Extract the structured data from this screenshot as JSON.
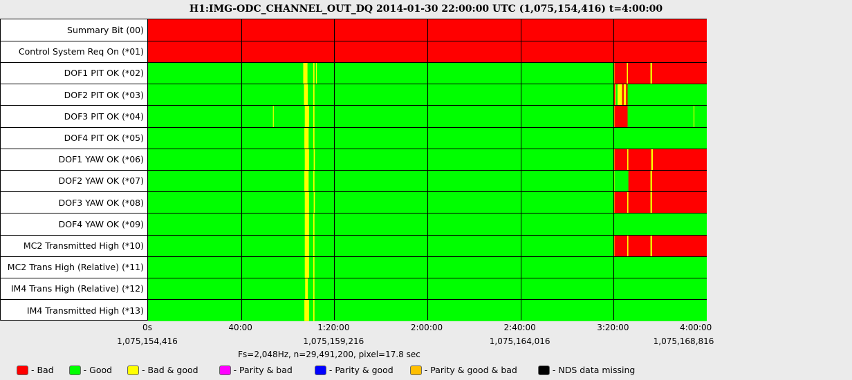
{
  "title": "H1:IMG-ODC_CHANNEL_OUT_DQ 2014-01-30 22:00:00 UTC (1,075,154,416) t=4:00:00",
  "subtitle": "Fs=2,048Hz, n=29,491,200, pixel=17.8 sec",
  "colors": {
    "bad": "#ff0000",
    "good": "#00ff00",
    "badgood": "#ffff00",
    "paritybad": "#ff00ff",
    "paritygood": "#0000ff",
    "paritygoodbad": "#ffbf00",
    "missing": "#000000"
  },
  "legend": [
    {
      "key": "bad",
      "label": "- Bad"
    },
    {
      "key": "good",
      "label": "- Good"
    },
    {
      "key": "badgood",
      "label": "- Bad & good"
    },
    {
      "key": "paritybad",
      "label": "- Parity & bad"
    },
    {
      "key": "paritygood",
      "label": "- Parity & good"
    },
    {
      "key": "paritygoodbad",
      "label": "- Parity & good & bad"
    },
    {
      "key": "missing",
      "label": "- NDS data missing"
    }
  ],
  "chart_data": {
    "type": "heatmap",
    "x_range_seconds": [
      0,
      14400
    ],
    "x_ticks": [
      {
        "t": 0,
        "label": "0s",
        "gps": "1,075,154,416"
      },
      {
        "t": 2400,
        "label": "40:00",
        "gps": ""
      },
      {
        "t": 4800,
        "label": "1:20:00",
        "gps": "1,075,159,216"
      },
      {
        "t": 7200,
        "label": "2:00:00",
        "gps": ""
      },
      {
        "t": 9600,
        "label": "2:40:00",
        "gps": "1,075,164,016"
      },
      {
        "t": 12000,
        "label": "3:20:00",
        "gps": ""
      },
      {
        "t": 14400,
        "label": "4:00:00",
        "gps": "1,075,168,816"
      }
    ],
    "rows": [
      {
        "label": "Summary Bit (00)",
        "base": "bad",
        "segments": []
      },
      {
        "label": "Control System Req On (*01)",
        "base": "bad",
        "segments": []
      },
      {
        "label": "DOF1 PIT OK (*02)",
        "base": "good",
        "segments": [
          {
            "t0": 4000,
            "t1": 4110,
            "s": "badgood"
          },
          {
            "t0": 4260,
            "t1": 4290,
            "s": "badgood"
          },
          {
            "t0": 4330,
            "t1": 4350,
            "s": "badgood"
          },
          {
            "t0": 12000,
            "t1": 12020,
            "s": "badgood"
          },
          {
            "t0": 12020,
            "t1": 12340,
            "s": "bad"
          },
          {
            "t0": 12340,
            "t1": 12370,
            "s": "badgood"
          },
          {
            "t0": 12370,
            "t1": 12950,
            "s": "bad"
          },
          {
            "t0": 12950,
            "t1": 12990,
            "s": "badgood"
          },
          {
            "t0": 12990,
            "t1": 14400,
            "s": "bad"
          }
        ]
      },
      {
        "label": "DOF2 PIT OK (*03)",
        "base": "good",
        "segments": [
          {
            "t0": 4020,
            "t1": 4120,
            "s": "badgood"
          },
          {
            "t0": 4260,
            "t1": 4290,
            "s": "badgood"
          },
          {
            "t0": 12000,
            "t1": 12040,
            "s": "bad"
          },
          {
            "t0": 12040,
            "t1": 12060,
            "s": "badgood"
          },
          {
            "t0": 12060,
            "t1": 12100,
            "s": "good"
          },
          {
            "t0": 12100,
            "t1": 12220,
            "s": "badgood"
          },
          {
            "t0": 12220,
            "t1": 12260,
            "s": "bad"
          },
          {
            "t0": 12260,
            "t1": 12320,
            "s": "badgood"
          },
          {
            "t0": 12320,
            "t1": 12360,
            "s": "bad"
          }
        ]
      },
      {
        "label": "DOF3 PIT OK (*04)",
        "base": "good",
        "segments": [
          {
            "t0": 3220,
            "t1": 3240,
            "s": "badgood"
          },
          {
            "t0": 4040,
            "t1": 4150,
            "s": "badgood"
          },
          {
            "t0": 4260,
            "t1": 4290,
            "s": "badgood"
          },
          {
            "t0": 12000,
            "t1": 12020,
            "s": "badgood"
          },
          {
            "t0": 12020,
            "t1": 12360,
            "s": "bad"
          },
          {
            "t0": 14060,
            "t1": 14080,
            "s": "badgood"
          }
        ]
      },
      {
        "label": "DOF4 PIT OK (*05)",
        "base": "good",
        "segments": [
          {
            "t0": 4030,
            "t1": 4140,
            "s": "badgood"
          },
          {
            "t0": 4260,
            "t1": 4290,
            "s": "badgood"
          }
        ]
      },
      {
        "label": "DOF1 YAW OK (*06)",
        "base": "good",
        "segments": [
          {
            "t0": 4040,
            "t1": 4150,
            "s": "badgood"
          },
          {
            "t0": 4270,
            "t1": 4300,
            "s": "badgood"
          },
          {
            "t0": 12000,
            "t1": 12020,
            "s": "badgood"
          },
          {
            "t0": 12020,
            "t1": 12350,
            "s": "bad"
          },
          {
            "t0": 12350,
            "t1": 12380,
            "s": "badgood"
          },
          {
            "t0": 12380,
            "t1": 12970,
            "s": "bad"
          },
          {
            "t0": 12970,
            "t1": 13010,
            "s": "badgood"
          },
          {
            "t0": 13010,
            "t1": 14400,
            "s": "bad"
          }
        ]
      },
      {
        "label": "DOF2 YAW OK (*07)",
        "base": "good",
        "segments": [
          {
            "t0": 4030,
            "t1": 4140,
            "s": "badgood"
          },
          {
            "t0": 4260,
            "t1": 4290,
            "s": "badgood"
          },
          {
            "t0": 12000,
            "t1": 12020,
            "s": "badgood"
          },
          {
            "t0": 12380,
            "t1": 12950,
            "s": "bad"
          },
          {
            "t0": 12950,
            "t1": 12990,
            "s": "badgood"
          },
          {
            "t0": 12990,
            "t1": 14400,
            "s": "bad"
          }
        ]
      },
      {
        "label": "DOF3 YAW OK (*08)",
        "base": "good",
        "segments": [
          {
            "t0": 4040,
            "t1": 4150,
            "s": "badgood"
          },
          {
            "t0": 4270,
            "t1": 4300,
            "s": "badgood"
          },
          {
            "t0": 12000,
            "t1": 12020,
            "s": "badgood"
          },
          {
            "t0": 12020,
            "t1": 12350,
            "s": "bad"
          },
          {
            "t0": 12350,
            "t1": 12380,
            "s": "badgood"
          },
          {
            "t0": 12380,
            "t1": 12950,
            "s": "bad"
          },
          {
            "t0": 12950,
            "t1": 12990,
            "s": "badgood"
          },
          {
            "t0": 12990,
            "t1": 14400,
            "s": "bad"
          }
        ]
      },
      {
        "label": "DOF4 YAW OK (*09)",
        "base": "good",
        "segments": [
          {
            "t0": 4040,
            "t1": 4150,
            "s": "badgood"
          },
          {
            "t0": 4260,
            "t1": 4290,
            "s": "badgood"
          }
        ]
      },
      {
        "label": "MC2 Transmitted High (*10)",
        "base": "good",
        "segments": [
          {
            "t0": 4040,
            "t1": 4150,
            "s": "badgood"
          },
          {
            "t0": 4260,
            "t1": 4290,
            "s": "badgood"
          },
          {
            "t0": 12000,
            "t1": 12020,
            "s": "badgood"
          },
          {
            "t0": 12020,
            "t1": 12350,
            "s": "bad"
          },
          {
            "t0": 12350,
            "t1": 12380,
            "s": "badgood"
          },
          {
            "t0": 12380,
            "t1": 12950,
            "s": "bad"
          },
          {
            "t0": 12950,
            "t1": 12990,
            "s": "badgood"
          },
          {
            "t0": 12990,
            "t1": 14400,
            "s": "bad"
          }
        ]
      },
      {
        "label": "MC2 Trans High (Relative) (*11)",
        "base": "good",
        "segments": [
          {
            "t0": 4040,
            "t1": 4150,
            "s": "badgood"
          },
          {
            "t0": 4260,
            "t1": 4290,
            "s": "badgood"
          }
        ]
      },
      {
        "label": "IM4 Trans High (Relative) (*12)",
        "base": "good",
        "segments": [
          {
            "t0": 4050,
            "t1": 4120,
            "s": "badgood"
          },
          {
            "t0": 4260,
            "t1": 4290,
            "s": "badgood"
          }
        ]
      },
      {
        "label": "IM4 Transmitted High (*13)",
        "base": "good",
        "segments": [
          {
            "t0": 4030,
            "t1": 4150,
            "s": "badgood"
          },
          {
            "t0": 4260,
            "t1": 4290,
            "s": "badgood"
          }
        ]
      }
    ]
  }
}
